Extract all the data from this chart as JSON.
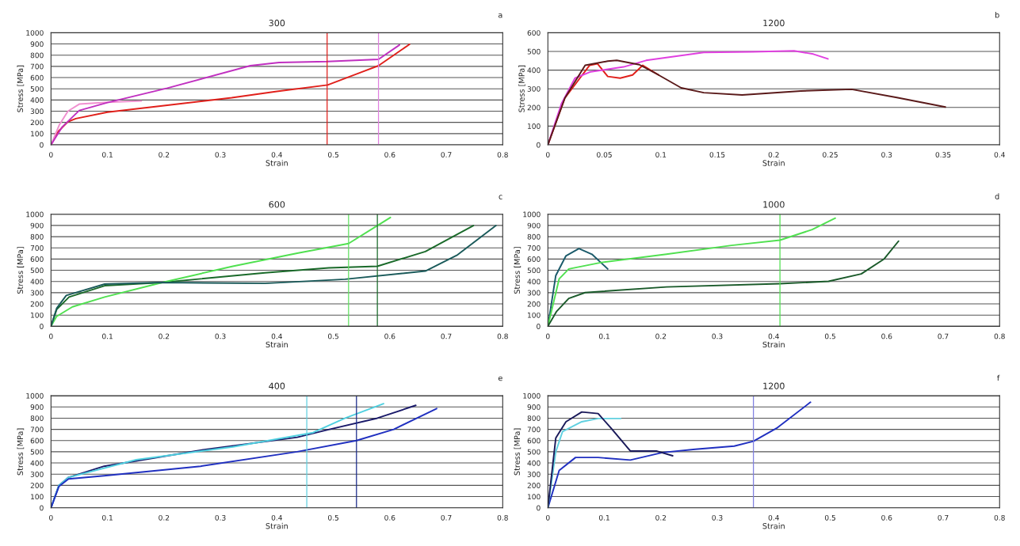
{
  "chart_data": [
    {
      "type": "line",
      "title": "300",
      "xlabel": "Strain",
      "ylabel": "Stress [MPa]",
      "xlim": [
        0,
        0.8
      ],
      "ylim": [
        0,
        1000
      ],
      "xticks": [
        0,
        0.1,
        0.2,
        0.3,
        0.4,
        0.5,
        0.6,
        0.7,
        0.8
      ],
      "yticks": [
        0,
        100,
        200,
        300,
        400,
        500,
        600,
        700,
        800,
        900,
        1000
      ],
      "grid": "y",
      "annotations": [
        "a"
      ],
      "ref_lines": [
        {
          "axis": "x",
          "value": 0.489,
          "color": "#e0201b"
        },
        {
          "axis": "x",
          "value": 0.58,
          "color": "#e080e0"
        }
      ],
      "series": [
        {
          "color": "#e0201b",
          "x": [
            0,
            0.013,
            0.03,
            0.044,
            0.1,
            0.2,
            0.32,
            0.4,
            0.49,
            0.55,
            0.58,
            0.635
          ],
          "values": [
            0,
            120,
            206,
            234,
            291,
            349,
            420,
            477,
            534,
            649,
            706,
            897
          ]
        },
        {
          "color": "#f090d0",
          "x": [
            0,
            0.015,
            0.03,
            0.05,
            0.1,
            0.16
          ],
          "values": [
            0,
            180,
            300,
            363,
            380,
            391
          ]
        },
        {
          "color": "#c030c0",
          "x": [
            0,
            0.02,
            0.05,
            0.1,
            0.206,
            0.353,
            0.404,
            0.489,
            0.58,
            0.617
          ],
          "values": [
            0,
            160,
            306,
            377,
            506,
            706,
            734,
            743,
            763,
            891
          ]
        }
      ]
    },
    {
      "type": "line",
      "title": "1200",
      "xlabel": "Strain",
      "ylabel": "Stress [MPa]",
      "xlim": [
        0,
        0.4
      ],
      "ylim": [
        0,
        600
      ],
      "xticks": [
        0,
        0.05,
        0.1,
        0.15,
        0.2,
        0.25,
        0.3,
        0.35,
        0.4
      ],
      "yticks": [
        0,
        100,
        200,
        300,
        400,
        500,
        600
      ],
      "grid": "y",
      "annotations": [
        "b"
      ],
      "series": [
        {
          "color": "#e0201b",
          "x": [
            0,
            0.015,
            0.037,
            0.044,
            0.053,
            0.064,
            0.075,
            0.084,
            0.098
          ],
          "values": [
            0,
            250,
            426,
            434,
            366,
            357,
            374,
            426,
            374
          ]
        },
        {
          "color": "#e040e0",
          "x": [
            0,
            0.012,
            0.024,
            0.038,
            0.067,
            0.087,
            0.138,
            0.181,
            0.218,
            0.235,
            0.248
          ],
          "values": [
            0,
            220,
            357,
            391,
            417,
            452,
            495,
            498,
            503,
            486,
            460
          ]
        },
        {
          "color": "#5a1a1a",
          "x": [
            0,
            0.015,
            0.033,
            0.053,
            0.061,
            0.081,
            0.098,
            0.118,
            0.138,
            0.172,
            0.224,
            0.269,
            0.309,
            0.352
          ],
          "values": [
            0,
            250,
            426,
            448,
            452,
            429,
            374,
            305,
            279,
            267,
            288,
            297,
            253,
            202
          ]
        }
      ]
    },
    {
      "type": "line",
      "title": "600",
      "xlabel": "Strain",
      "ylabel": "Stress [MPa]",
      "xlim": [
        0,
        0.8
      ],
      "ylim": [
        0,
        1000
      ],
      "xticks": [
        0,
        0.1,
        0.2,
        0.3,
        0.4,
        0.5,
        0.6,
        0.7,
        0.8
      ],
      "yticks": [
        0,
        100,
        200,
        300,
        400,
        500,
        600,
        700,
        800,
        900,
        1000
      ],
      "grid": "y",
      "annotations": [
        "c"
      ],
      "ref_lines": [
        {
          "axis": "x",
          "value": 0.527,
          "color": "#60e060"
        },
        {
          "axis": "x",
          "value": 0.578,
          "color": "#1a6a2a"
        }
      ],
      "series": [
        {
          "color": "#1a6a2a",
          "x": [
            0,
            0.01,
            0.032,
            0.095,
            0.197,
            0.379,
            0.492,
            0.578,
            0.663,
            0.748
          ],
          "values": [
            0,
            150,
            261,
            362,
            391,
            478,
            522,
            536,
            667,
            899
          ]
        },
        {
          "color": "#50e050",
          "x": [
            0,
            0.0097,
            0.038,
            0.095,
            0.197,
            0.322,
            0.436,
            0.527,
            0.578,
            0.601
          ],
          "values": [
            0,
            87,
            174,
            261,
            391,
            536,
            652,
            739,
            899,
            971
          ]
        },
        {
          "color": "#1a5a5a",
          "x": [
            0,
            0.01,
            0.027,
            0.095,
            0.197,
            0.379,
            0.521,
            0.663,
            0.72,
            0.788
          ],
          "values": [
            0,
            160,
            275,
            377,
            391,
            383,
            420,
            493,
            638,
            899
          ]
        }
      ]
    },
    {
      "type": "line",
      "title": "1000",
      "xlabel": "Strain",
      "ylabel": "Stress [MPa]",
      "xlim": [
        0,
        0.8
      ],
      "ylim": [
        0,
        1000
      ],
      "xticks": [
        0,
        0.1,
        0.2,
        0.3,
        0.4,
        0.5,
        0.6,
        0.7,
        0.8
      ],
      "yticks": [
        0,
        100,
        200,
        300,
        400,
        500,
        600,
        700,
        800,
        900,
        1000
      ],
      "grid": "y",
      "annotations": [
        "d"
      ],
      "ref_lines": [
        {
          "axis": "x",
          "value": 0.411,
          "color": "#50e050"
        }
      ],
      "series": [
        {
          "color": "#1a5a6a",
          "x": [
            0,
            0.014,
            0.032,
            0.055,
            0.078,
            0.106
          ],
          "values": [
            0,
            453,
            629,
            693,
            643,
            512
          ]
        },
        {
          "color": "#50e050",
          "x": [
            0,
            0.02,
            0.037,
            0.095,
            0.21,
            0.325,
            0.411,
            0.468,
            0.509
          ],
          "values": [
            0,
            424,
            512,
            570,
            643,
            722,
            769,
            863,
            965
          ]
        },
        {
          "color": "#1a5a2a",
          "x": [
            0,
            0.015,
            0.037,
            0.066,
            0.21,
            0.411,
            0.497,
            0.555,
            0.595,
            0.621
          ],
          "values": [
            0,
            130,
            249,
            301,
            351,
            380,
            401,
            468,
            599,
            760
          ]
        }
      ]
    },
    {
      "type": "line",
      "title": "400",
      "xlabel": "Strain",
      "ylabel": "Stress [MPa]",
      "xlim": [
        0,
        0.8
      ],
      "ylim": [
        0,
        1000
      ],
      "xticks": [
        0,
        0.1,
        0.2,
        0.3,
        0.4,
        0.5,
        0.6,
        0.7,
        0.8
      ],
      "yticks": [
        0,
        100,
        200,
        300,
        400,
        500,
        600,
        700,
        800,
        900,
        1000
      ],
      "grid": "y",
      "annotations": [
        "e"
      ],
      "ref_lines": [
        {
          "axis": "x",
          "value": 0.453,
          "color": "#60d0e0"
        },
        {
          "axis": "x",
          "value": 0.541,
          "color": "#1a2a8a"
        }
      ],
      "series": [
        {
          "color": "#1a1a6a",
          "x": [
            0,
            0.014,
            0.031,
            0.094,
            0.265,
            0.436,
            0.493,
            0.578,
            0.646
          ],
          "values": [
            0,
            200,
            271,
            371,
            514,
            629,
            700,
            800,
            914
          ]
        },
        {
          "color": "#50d0e0",
          "x": [
            0,
            0.014,
            0.031,
            0.151,
            0.322,
            0.464,
            0.521,
            0.589
          ],
          "values": [
            0,
            200,
            271,
            429,
            543,
            671,
            800,
            929
          ]
        },
        {
          "color": "#2030c0",
          "x": [
            0,
            0.014,
            0.031,
            0.094,
            0.265,
            0.436,
            0.541,
            0.607,
            0.683
          ],
          "values": [
            0,
            190,
            257,
            286,
            371,
            500,
            600,
            700,
            886
          ]
        }
      ]
    },
    {
      "type": "line",
      "title": "1200",
      "xlabel": "Strain",
      "ylabel": "Stress [MPa]",
      "xlim": [
        0,
        0.8
      ],
      "ylim": [
        0,
        1000
      ],
      "xticks": [
        0,
        0.1,
        0.2,
        0.3,
        0.4,
        0.5,
        0.6,
        0.7,
        0.8
      ],
      "yticks": [
        0,
        100,
        200,
        300,
        400,
        500,
        600,
        700,
        800,
        900,
        1000
      ],
      "grid": "y",
      "annotations": [
        "f"
      ],
      "ref_lines": [
        {
          "axis": "x",
          "value": 0.364,
          "color": "#8080e0"
        }
      ],
      "series": [
        {
          "color": "#2030c0",
          "x": [
            0,
            0.02,
            0.049,
            0.089,
            0.146,
            0.203,
            0.261,
            0.33,
            0.364,
            0.405,
            0.465
          ],
          "values": [
            0,
            333,
            449,
            449,
            426,
            493,
            522,
            551,
            594,
            710,
            942
          ]
        },
        {
          "color": "#60d0e0",
          "x": [
            0,
            0.014,
            0.026,
            0.06,
            0.089,
            0.129
          ],
          "values": [
            0,
            500,
            681,
            768,
            797,
            797
          ]
        },
        {
          "color": "#1a1a5a",
          "x": [
            0,
            0.014,
            0.032,
            0.06,
            0.089,
            0.112,
            0.146,
            0.192,
            0.221
          ],
          "values": [
            0,
            623,
            768,
            855,
            841,
            710,
            507,
            507,
            464
          ]
        }
      ]
    }
  ]
}
